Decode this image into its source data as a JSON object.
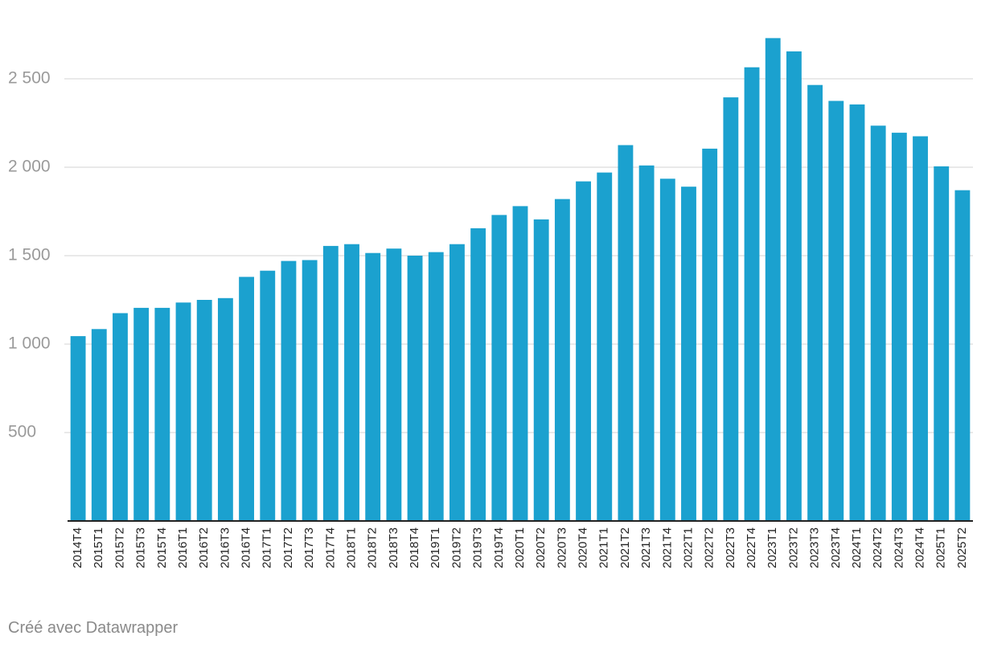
{
  "chart_data": {
    "type": "bar",
    "categories": [
      "2014T4",
      "2015T1",
      "2015T2",
      "2015T3",
      "2015T4",
      "2016T1",
      "2016T2",
      "2016T3",
      "2016T4",
      "2017T1",
      "2017T2",
      "2017T3",
      "2017T4",
      "2018T1",
      "2018T2",
      "2018T3",
      "2018T4",
      "2019T1",
      "2019T2",
      "2019T3",
      "2019T4",
      "2020T1",
      "2020T2",
      "2020T3",
      "2020T4",
      "2021T1",
      "2021T2",
      "2021T3",
      "2021T4",
      "2022T1",
      "2022T2",
      "2022T3",
      "2022T4",
      "2023T1",
      "2023T2",
      "2023T3",
      "2023T4",
      "2024T1",
      "2024T2",
      "2024T3",
      "2024T4",
      "2025T1",
      "2025T2"
    ],
    "values": [
      1045,
      1085,
      1175,
      1205,
      1205,
      1235,
      1250,
      1260,
      1380,
      1415,
      1470,
      1475,
      1555,
      1565,
      1515,
      1540,
      1500,
      1520,
      1565,
      1655,
      1730,
      1780,
      1705,
      1820,
      1920,
      1970,
      2125,
      2010,
      1935,
      1890,
      2105,
      2395,
      2565,
      2730,
      2655,
      2465,
      2375,
      2355,
      2235,
      2195,
      2175,
      2005,
      1870
    ],
    "ylim": [
      0,
      2750
    ],
    "yticks": [
      500,
      1000,
      1500,
      2000,
      2500
    ],
    "ytick_labels": [
      "500",
      "1 000",
      "1 500",
      "2 000",
      "2 500"
    ],
    "bar_color": "#1ba1cf",
    "grid": true
  },
  "credit": "Créé avec Datawrapper"
}
